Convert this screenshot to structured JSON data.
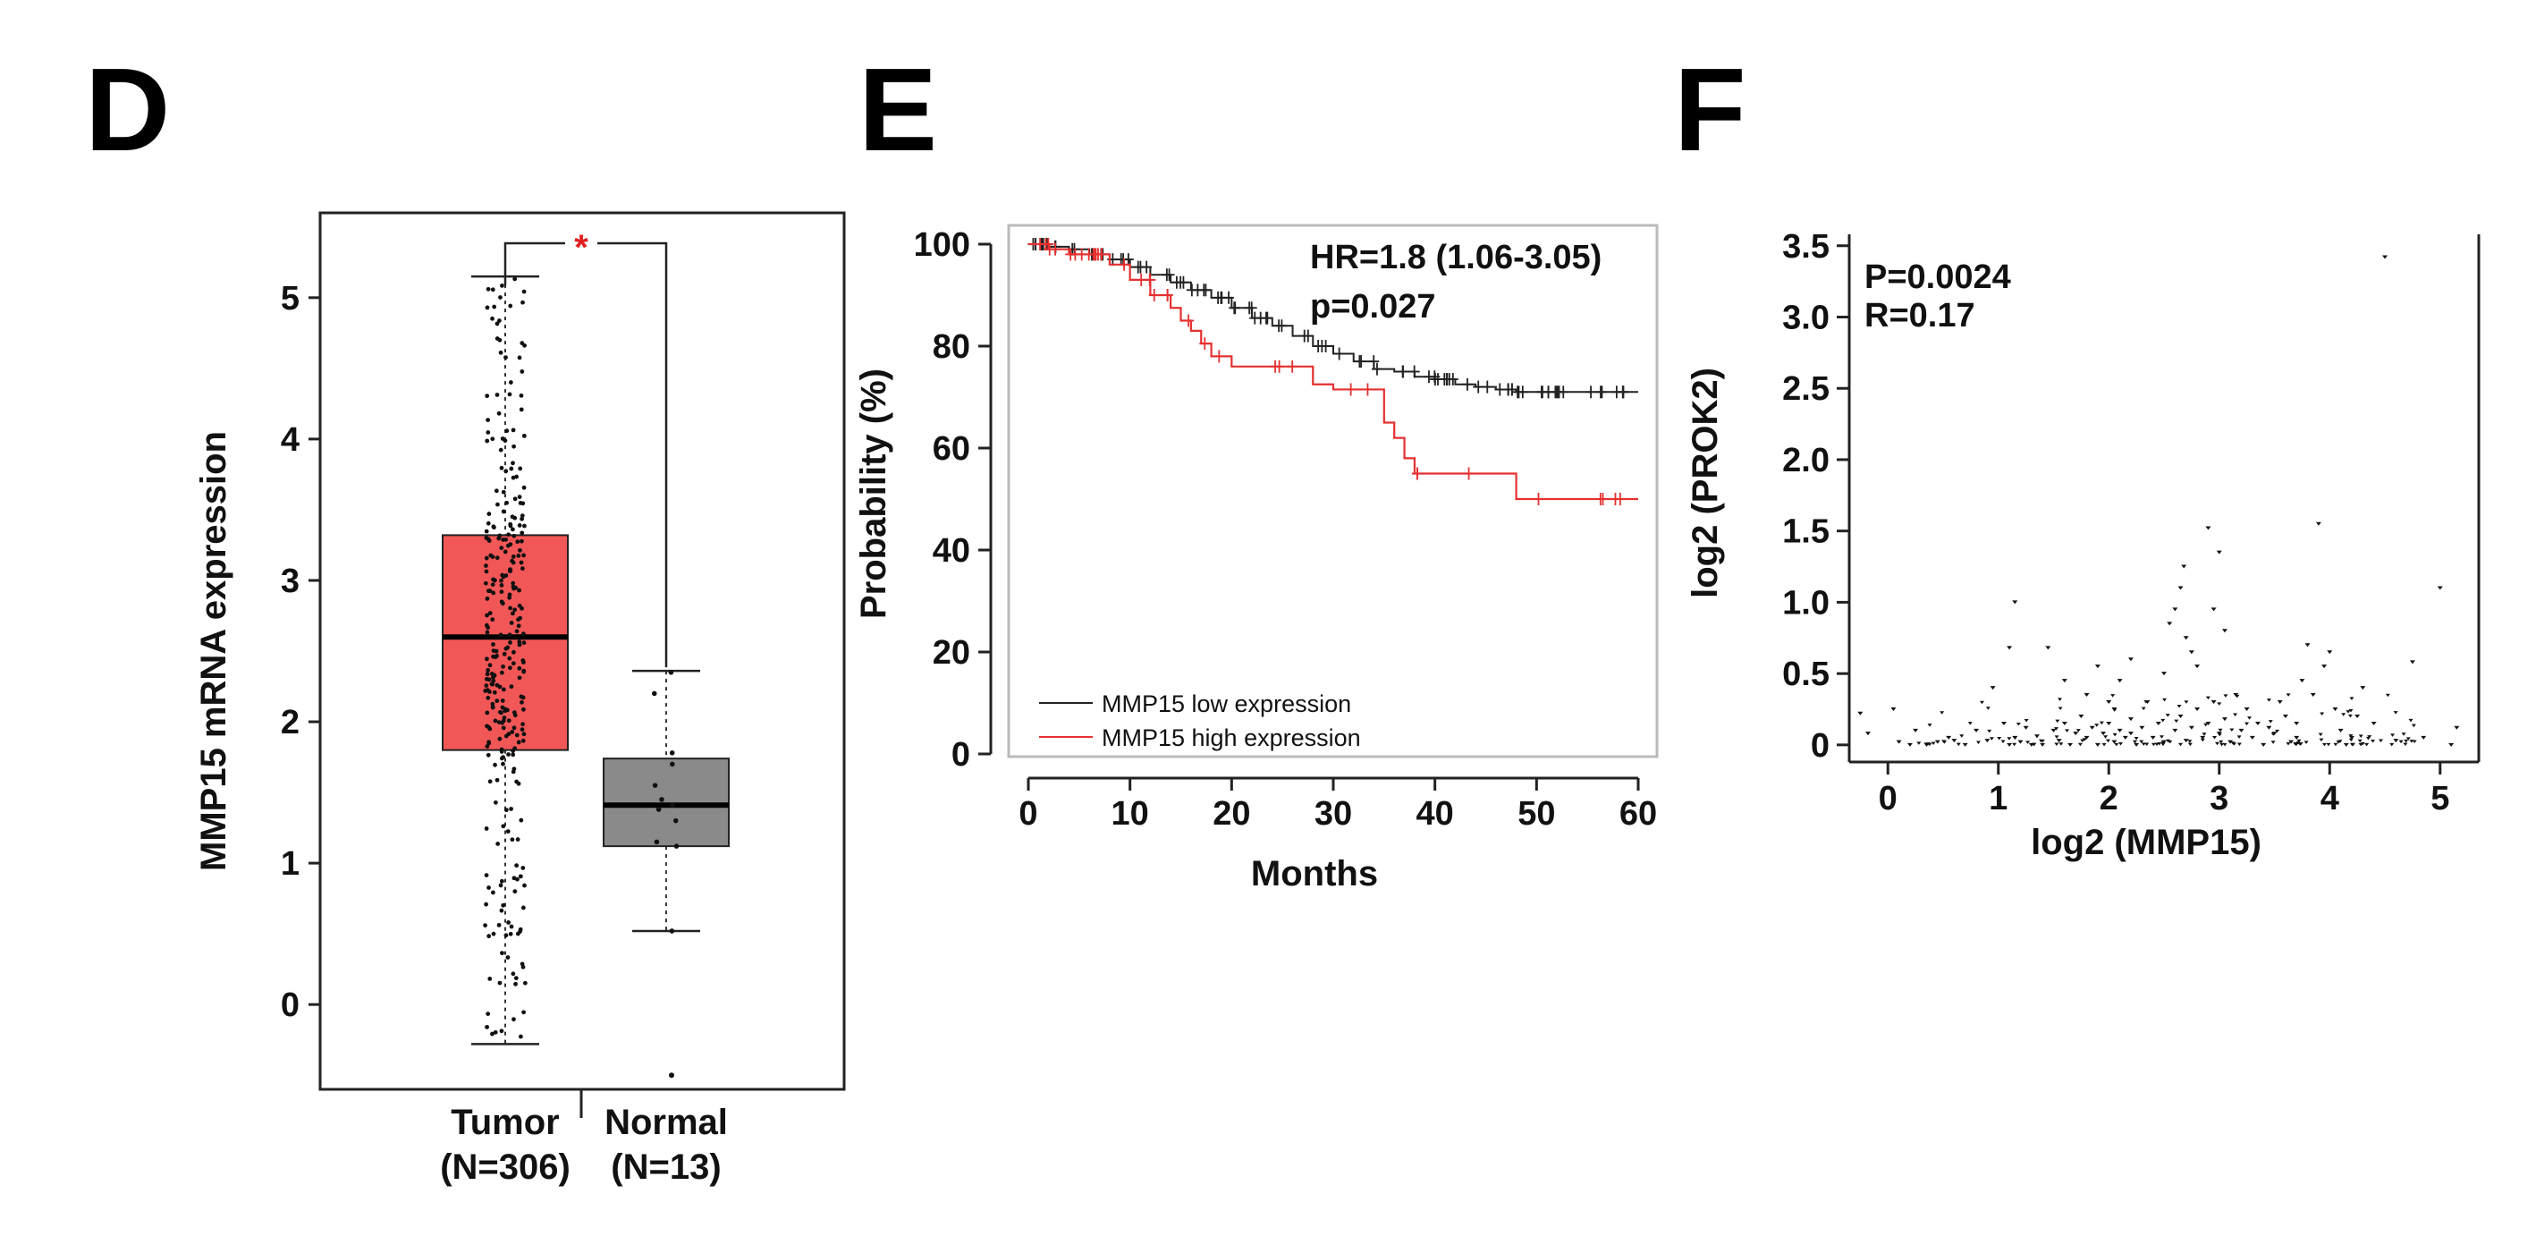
{
  "panels": {
    "d": {
      "letter": "D",
      "ylabel": "MMP15 mRNA expression",
      "y_ticks": [
        "0",
        "1",
        "2",
        "3",
        "4",
        "5"
      ],
      "categories": [
        {
          "name": "Tumor",
          "n_label": "(N=306)"
        },
        {
          "name": "Normal",
          "n_label": "(N=13)"
        }
      ],
      "significance": "*",
      "colors": {
        "tumor": "#f25757",
        "normal": "#8a8a8a",
        "star": "#e02020"
      }
    },
    "e": {
      "letter": "E",
      "ylabel": "Probability (%)",
      "xlabel": "Months",
      "x_ticks": [
        "0",
        "10",
        "20",
        "30",
        "40",
        "50",
        "60"
      ],
      "y_ticks": [
        "0",
        "20",
        "40",
        "60",
        "80",
        "100"
      ],
      "hr_text": "HR=1.8 (1.06-3.05)",
      "p_text": "p=0.027",
      "legend": [
        {
          "label": "MMP15 low expression",
          "color": "#222222"
        },
        {
          "label": "MMP15 high expression",
          "color": "#e53030"
        }
      ]
    },
    "f": {
      "letter": "F",
      "ylabel": "log2 (PROK2)",
      "xlabel": "log2 (MMP15)",
      "x_ticks": [
        "0",
        "1",
        "2",
        "3",
        "4",
        "5"
      ],
      "y_ticks": [
        "0",
        "0.5",
        "1.0",
        "1.5",
        "2.0",
        "2.5",
        "3.0",
        "3.5"
      ],
      "p_text": "P=0.0024",
      "r_text": "R=0.17"
    }
  },
  "chart_data": [
    {
      "type": "box",
      "title": "",
      "xlabel": "",
      "ylabel": "MMP15 mRNA expression",
      "ylim": [
        -0.6,
        5.6
      ],
      "categories": [
        "Tumor",
        "Normal"
      ],
      "n": [
        306,
        13
      ],
      "boxes": [
        {
          "name": "Tumor",
          "whisker_low": -0.28,
          "q1": 1.8,
          "median": 2.6,
          "q3": 3.32,
          "whisker_high": 5.15,
          "color": "#f25757"
        },
        {
          "name": "Normal",
          "whisker_low": 0.52,
          "q1": 1.12,
          "median": 1.41,
          "q3": 1.74,
          "whisker_high": 2.36,
          "color": "#8a8a8a"
        }
      ],
      "outliers": [
        {
          "group": "Normal",
          "value": -0.5
        }
      ],
      "significance": "*"
    },
    {
      "type": "line",
      "subtype": "kaplan-meier",
      "title": "",
      "xlabel": "Months",
      "ylabel": "Probability (%)",
      "xlim": [
        0,
        60
      ],
      "ylim": [
        0,
        100
      ],
      "series": [
        {
          "name": "MMP15 low expression",
          "color": "#222222",
          "x": [
            0,
            2,
            4,
            6,
            8,
            10,
            12,
            14,
            16,
            18,
            20,
            22,
            24,
            26,
            28,
            30,
            32,
            34,
            36,
            38,
            40,
            42,
            44,
            46,
            48,
            60
          ],
          "y": [
            100,
            99.5,
            99,
            98,
            97,
            95.5,
            94,
            92.5,
            91,
            89.5,
            87.5,
            85.5,
            84,
            82,
            80,
            78.5,
            77,
            75.5,
            75,
            74,
            73.5,
            72.5,
            72,
            71.5,
            71,
            71
          ]
        },
        {
          "name": "MMP15 high expression",
          "color": "#e53030",
          "x": [
            0,
            2,
            4,
            8,
            10,
            12,
            14,
            15,
            16,
            17,
            18,
            20,
            27,
            28,
            30,
            34,
            35,
            36,
            37,
            38,
            48,
            60
          ],
          "y": [
            100,
            99,
            98,
            96,
            93,
            90,
            87.5,
            85,
            83,
            80.5,
            78,
            76,
            76,
            72.5,
            71.5,
            71.5,
            65,
            62,
            58,
            55,
            50,
            50
          ]
        }
      ],
      "annotations": [
        "HR=1.8 (1.06-3.05)",
        "p=0.027"
      ]
    },
    {
      "type": "scatter",
      "title": "",
      "xlabel": "log2 (MMP15)",
      "ylabel": "log2 (PROK2)",
      "xlim": [
        -0.35,
        5.35
      ],
      "ylim": [
        -0.12,
        3.58
      ],
      "points": [
        [
          -0.25,
          0.22
        ],
        [
          -0.18,
          0.08
        ],
        [
          0.05,
          0.25
        ],
        [
          0.1,
          0.02
        ],
        [
          0.2,
          0.0
        ],
        [
          0.25,
          0.1
        ],
        [
          0.35,
          0.0
        ],
        [
          0.45,
          0.02
        ],
        [
          0.55,
          0.05
        ],
        [
          0.7,
          0.0
        ],
        [
          0.8,
          0.1
        ],
        [
          0.9,
          0.03
        ],
        [
          0.95,
          0.4
        ],
        [
          1.05,
          0.15
        ],
        [
          1.1,
          0.0
        ],
        [
          1.15,
          0.05
        ],
        [
          1.2,
          0.02
        ],
        [
          1.25,
          0.12
        ],
        [
          1.3,
          0.0
        ],
        [
          1.35,
          0.06
        ],
        [
          1.1,
          0.68
        ],
        [
          1.45,
          0.68
        ],
        [
          1.6,
          0.45
        ],
        [
          1.8,
          0.35
        ],
        [
          1.9,
          0.55
        ],
        [
          2.05,
          0.25
        ],
        [
          2.1,
          0.45
        ],
        [
          2.2,
          0.6
        ],
        [
          1.15,
          1.0
        ],
        [
          1.5,
          0.1
        ],
        [
          1.55,
          0.03
        ],
        [
          1.6,
          0.15
        ],
        [
          1.65,
          0.0
        ],
        [
          1.7,
          0.08
        ],
        [
          1.75,
          0.2
        ],
        [
          1.8,
          0.05
        ],
        [
          1.85,
          0.12
        ],
        [
          1.9,
          0.0
        ],
        [
          1.95,
          0.08
        ],
        [
          2.0,
          0.15
        ],
        [
          2.05,
          0.02
        ],
        [
          2.1,
          0.1
        ],
        [
          2.15,
          0.05
        ],
        [
          2.2,
          0.18
        ],
        [
          2.25,
          0.0
        ],
        [
          2.3,
          0.12
        ],
        [
          2.35,
          0.3
        ],
        [
          2.4,
          0.05
        ],
        [
          2.45,
          0.15
        ],
        [
          2.5,
          0.02
        ],
        [
          2.5,
          0.5
        ],
        [
          2.55,
          0.85
        ],
        [
          2.6,
          0.95
        ],
        [
          2.65,
          1.1
        ],
        [
          2.68,
          1.25
        ],
        [
          2.7,
          0.75
        ],
        [
          2.75,
          0.65
        ],
        [
          2.8,
          0.55
        ],
        [
          2.9,
          1.52
        ],
        [
          2.95,
          0.95
        ],
        [
          3.0,
          1.35
        ],
        [
          3.05,
          0.8
        ],
        [
          2.6,
          0.1
        ],
        [
          2.65,
          0.2
        ],
        [
          2.7,
          0.03
        ],
        [
          2.75,
          0.12
        ],
        [
          2.8,
          0.25
        ],
        [
          2.85,
          0.05
        ],
        [
          2.9,
          0.15
        ],
        [
          2.95,
          0.3
        ],
        [
          3.0,
          0.08
        ],
        [
          3.05,
          0.18
        ],
        [
          3.1,
          0.02
        ],
        [
          3.15,
          0.35
        ],
        [
          3.2,
          0.1
        ],
        [
          3.25,
          0.25
        ],
        [
          3.3,
          0.05
        ],
        [
          3.35,
          0.15
        ],
        [
          3.4,
          0.0
        ],
        [
          3.5,
          0.08
        ],
        [
          3.6,
          0.2
        ],
        [
          3.7,
          0.05
        ],
        [
          3.75,
          0.45
        ],
        [
          3.8,
          0.7
        ],
        [
          3.85,
          0.35
        ],
        [
          3.9,
          1.55
        ],
        [
          3.95,
          0.55
        ],
        [
          4.0,
          0.65
        ],
        [
          4.05,
          0.25
        ],
        [
          4.1,
          0.1
        ],
        [
          4.15,
          0.0
        ],
        [
          4.2,
          0.05
        ],
        [
          4.3,
          0.4
        ],
        [
          4.4,
          0.15
        ],
        [
          4.5,
          3.42
        ],
        [
          4.75,
          0.58
        ],
        [
          4.85,
          0.05
        ],
        [
          5.0,
          1.1
        ],
        [
          5.15,
          0.12
        ],
        [
          5.1,
          0.0
        ],
        [
          3.7,
          0.15
        ],
        [
          3.65,
          0.02
        ],
        [
          3.55,
          0.3
        ],
        [
          3.45,
          0.12
        ],
        [
          4.25,
          0.2
        ],
        [
          4.6,
          0.03
        ],
        [
          2.2,
          0.08
        ],
        [
          2.0,
          0.3
        ],
        [
          1.4,
          0.0
        ],
        [
          0.6,
          0.03
        ]
      ],
      "annotations": [
        "P=0.0024",
        "R=0.17"
      ]
    }
  ]
}
